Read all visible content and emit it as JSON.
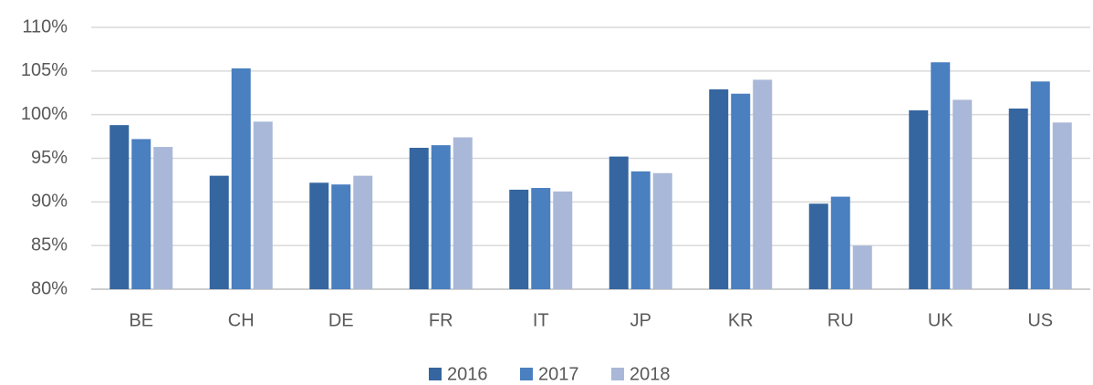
{
  "chart_data": {
    "type": "bar",
    "categories": [
      "BE",
      "CH",
      "DE",
      "FR",
      "IT",
      "JP",
      "KR",
      "RU",
      "UK",
      "US"
    ],
    "series": [
      {
        "name": "2016",
        "color": "#35669f",
        "values": [
          98.8,
          93.0,
          92.2,
          96.2,
          91.4,
          95.2,
          102.9,
          89.8,
          100.5,
          100.7
        ]
      },
      {
        "name": "2017",
        "color": "#4a7fc0",
        "values": [
          97.2,
          105.3,
          92.0,
          96.5,
          91.6,
          93.5,
          102.4,
          90.6,
          106.0,
          103.8
        ]
      },
      {
        "name": "2018",
        "color": "#a9b8d8",
        "values": [
          96.3,
          99.2,
          93.0,
          97.4,
          91.2,
          93.3,
          104.0,
          85.0,
          101.7,
          99.1
        ]
      }
    ],
    "ylim": [
      80,
      110
    ],
    "yticks": [
      {
        "value": 80,
        "label": "80%"
      },
      {
        "value": 85,
        "label": "85%"
      },
      {
        "value": 90,
        "label": "90%"
      },
      {
        "value": 95,
        "label": "95%"
      },
      {
        "value": 100,
        "label": "100%"
      },
      {
        "value": 105,
        "label": "105%"
      },
      {
        "value": 110,
        "label": "110%"
      }
    ],
    "grid": true
  }
}
